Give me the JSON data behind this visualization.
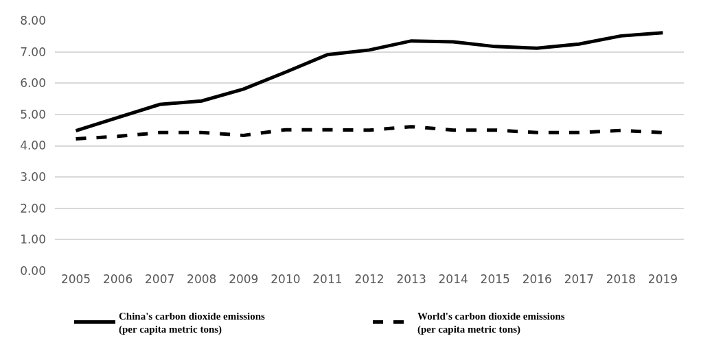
{
  "chart_data": {
    "type": "line",
    "categories": [
      "2005",
      "2006",
      "2007",
      "2008",
      "2009",
      "2010",
      "2011",
      "2012",
      "2013",
      "2014",
      "2015",
      "2016",
      "2017",
      "2018",
      "2019"
    ],
    "series": [
      {
        "name": "China's carbon dioxide emissions\n(per capita metric tons)",
        "color": "#000000",
        "line_style": "solid",
        "values": [
          4.48,
          4.9,
          5.32,
          5.43,
          5.81,
          6.35,
          6.91,
          7.06,
          7.35,
          7.32,
          7.17,
          7.12,
          7.25,
          7.51,
          7.61
        ]
      },
      {
        "name": "World's carbon dioxide emissions\n(per capita metric tons)",
        "color": "#000000",
        "line_style": "dashed",
        "values": [
          4.22,
          4.3,
          4.42,
          4.42,
          4.33,
          4.51,
          4.51,
          4.5,
          4.61,
          4.5,
          4.5,
          4.42,
          4.42,
          4.49,
          4.42
        ]
      }
    ],
    "ylim": [
      0,
      8
    ],
    "yticks": [
      {
        "value": 0,
        "label": "0.00"
      },
      {
        "value": 1,
        "label": "1.00"
      },
      {
        "value": 2,
        "label": "2.00"
      },
      {
        "value": 3,
        "label": "3.00"
      },
      {
        "value": 4,
        "label": "4.00"
      },
      {
        "value": 5,
        "label": "5.00"
      },
      {
        "value": 6,
        "label": "6.00"
      },
      {
        "value": 7,
        "label": "7.00"
      },
      {
        "value": 8,
        "label": "8.00"
      }
    ],
    "grid": "y",
    "legend": "bottom",
    "marker": "none"
  }
}
